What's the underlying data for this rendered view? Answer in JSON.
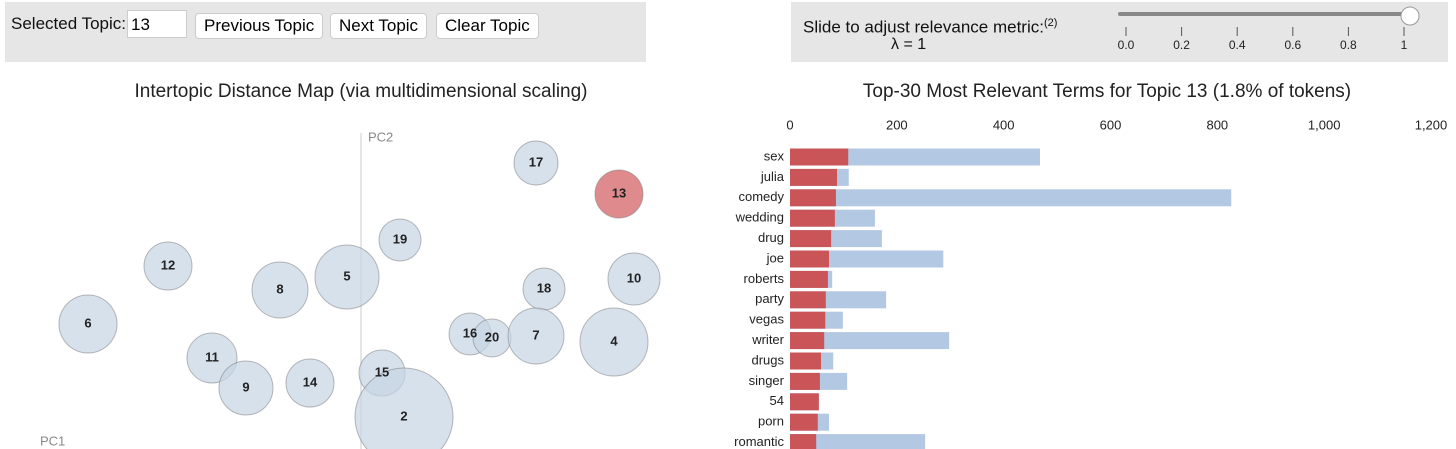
{
  "controls": {
    "selected_label": "Selected Topic:",
    "selected_value": "13",
    "buttons": [
      "Previous Topic",
      "Next Topic",
      "Clear Topic"
    ]
  },
  "relevance": {
    "label": "Slide to adjust relevance metric:",
    "footnote": "(2)",
    "lambda_label": "λ = 1",
    "value": 1,
    "lim": [
      0,
      1
    ],
    "ticks": [
      {
        "value": 0,
        "label": "0.0"
      },
      0.2,
      0.4,
      0.6,
      0.8,
      1
    ]
  },
  "chart_data": [
    {
      "type": "bubble",
      "title": "Intertopic Distance Map (via multidimensional scaling)",
      "x_label": "PC1",
      "y_label": "PC2",
      "labels": [
        "17",
        "13",
        "19",
        "12",
        "5",
        "8",
        "18",
        "10",
        "6",
        "16",
        "20",
        "7",
        "4",
        "11",
        "9",
        "14",
        "15",
        "2"
      ],
      "x": [
        1.75,
        2.58,
        0.39,
        -1.93,
        -0.14,
        -0.81,
        1.83,
        2.73,
        -2.73,
        1.09,
        1.31,
        1.75,
        2.53,
        -1.49,
        -1.15,
        -0.51,
        0.21,
        0.43
      ],
      "y": [
        2.86,
        2.55,
        2.09,
        1.83,
        1.72,
        1.59,
        1.6,
        1.7,
        1.25,
        1.15,
        1.11,
        1.13,
        1.07,
        0.91,
        0.61,
        0.66,
        0.76,
        0.32
      ],
      "r": [
        0.22,
        0.24,
        0.21,
        0.24,
        0.32,
        0.28,
        0.21,
        0.26,
        0.29,
        0.21,
        0.19,
        0.28,
        0.34,
        0.25,
        0.27,
        0.24,
        0.23,
        0.49
      ],
      "colors": [
        "#c6d4e4",
        "#d25a5c",
        "#c6d4e4",
        "#c6d4e4",
        "#c6d4e4",
        "#c6d4e4",
        "#c6d4e4",
        "#c6d4e4",
        "#c6d4e4",
        "#c6d4e4",
        "#c6d4e4",
        "#c6d4e4",
        "#c6d4e4",
        "#c6d4e4",
        "#c6d4e4",
        "#c6d4e4",
        "#c6d4e4",
        "#c6d4e4"
      ],
      "xlim": [
        -3.61,
        2.85
      ],
      "ylim": [
        0,
        3.34
      ]
    },
    {
      "type": "barh",
      "title": "Top-30 Most Relevant Terms for Topic 13 (1.8% of tokens)",
      "categories": [
        "sex",
        "julia",
        "comedy",
        "wedding",
        "drug",
        "joe",
        "roberts",
        "party",
        "vegas",
        "writer",
        "drugs",
        "singer",
        "54",
        "porn",
        "romantic"
      ],
      "series": [
        {
          "color": "#b3c8e2",
          "values": [
            468,
            110,
            826,
            159,
            172,
            287,
            79,
            180,
            99,
            298,
            81,
            107,
            54,
            73,
            253
          ]
        },
        {
          "color": "#c95558",
          "values": [
            109,
            88,
            86,
            84,
            77,
            73,
            71,
            67,
            66,
            64,
            58,
            56,
            54,
            52,
            49
          ]
        }
      ],
      "xlim": [
        0,
        1200
      ],
      "xticks": [
        0,
        200,
        400,
        600,
        800,
        {
          "value": 1000,
          "label": "1,000"
        },
        {
          "value": 1200,
          "label": "1,200"
        }
      ]
    }
  ]
}
